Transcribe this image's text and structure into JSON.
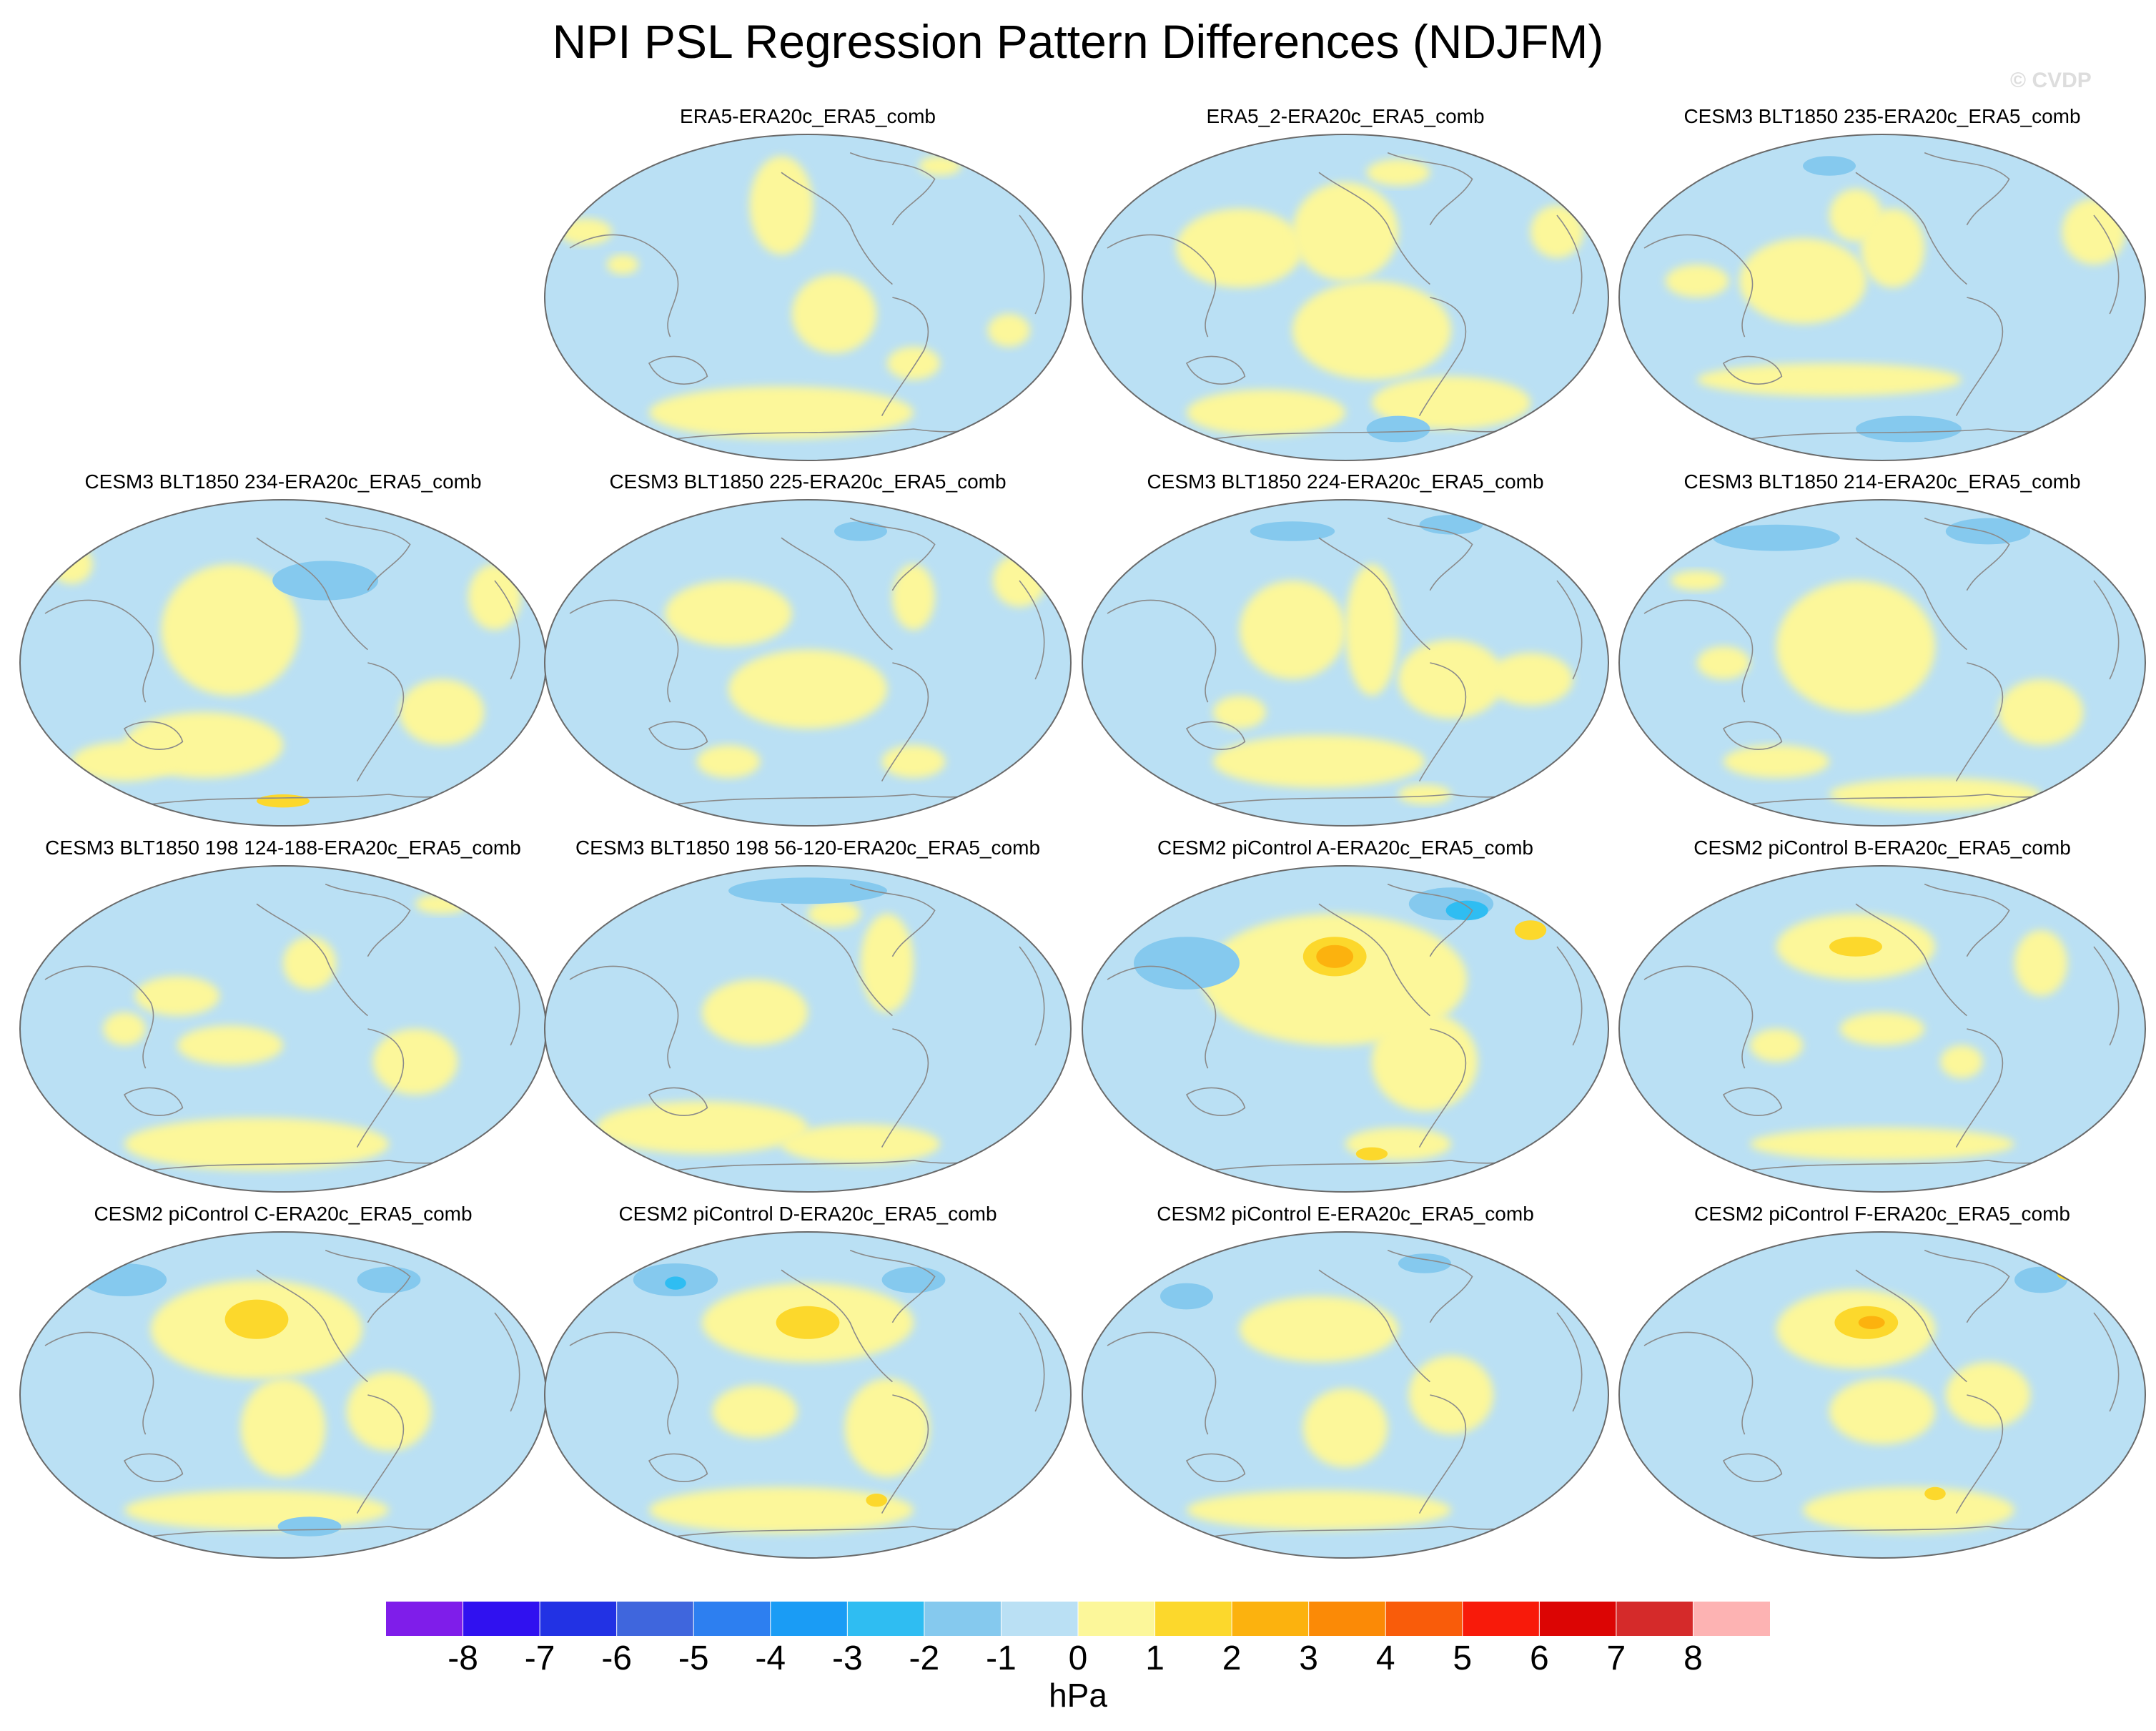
{
  "title": "NPI PSL Regression Pattern Differences (NDJFM)",
  "watermark": "© CVDP",
  "units": "hPa",
  "colorbar": {
    "labels": [
      "-8",
      "-7",
      "-6",
      "-5",
      "-4",
      "-3",
      "-2",
      "-1",
      "0",
      "1",
      "2",
      "3",
      "4",
      "5",
      "6",
      "7",
      "8"
    ],
    "colors": [
      "#7f1dea",
      "#3011f0",
      "#2232e4",
      "#3f66dd",
      "#2d7ff0",
      "#1a9cf5",
      "#2fbdf2",
      "#85c9ee",
      "#bae0f4",
      "#fcf79a",
      "#fcd82c",
      "#fcb20e",
      "#fb8a06",
      "#f95c0a",
      "#f81a0a",
      "#dc0504",
      "#d52a2a",
      "#fdb3b3"
    ]
  },
  "map_colors": {
    "ocean_base": "#bae0f4",
    "positive": "#fcf79a",
    "positive_2": "#fcd82c",
    "positive_3": "#fcb20e",
    "negative_2": "#85c9ee",
    "negative_3": "#2fbdf2",
    "coast": "#8a8a8a",
    "outline": "#6a6a6a"
  },
  "panels": [
    {
      "title": "ERA5-ERA20c_ERA5_comb",
      "pos": [
        1,
        0
      ],
      "blobs": [
        [
          0.08,
          0.3,
          0.05,
          0.04,
          1
        ],
        [
          0.45,
          0.22,
          0.06,
          0.15,
          1
        ],
        [
          0.75,
          0.1,
          0.04,
          0.03,
          1
        ],
        [
          0.55,
          0.55,
          0.08,
          0.12,
          1
        ],
        [
          0.45,
          0.85,
          0.25,
          0.08,
          1
        ],
        [
          0.7,
          0.7,
          0.05,
          0.05,
          1
        ],
        [
          0.88,
          0.6,
          0.04,
          0.05,
          1
        ],
        [
          0.15,
          0.4,
          0.03,
          0.03,
          1
        ]
      ]
    },
    {
      "title": "ERA5_2-ERA20c_ERA5_comb",
      "pos": [
        2,
        0
      ],
      "blobs": [
        [
          0.3,
          0.35,
          0.12,
          0.12,
          1
        ],
        [
          0.5,
          0.3,
          0.1,
          0.15,
          1
        ],
        [
          0.55,
          0.6,
          0.15,
          0.15,
          1
        ],
        [
          0.35,
          0.85,
          0.15,
          0.07,
          1
        ],
        [
          0.7,
          0.82,
          0.15,
          0.08,
          1
        ],
        [
          0.9,
          0.3,
          0.05,
          0.08,
          1
        ],
        [
          0.6,
          0.12,
          0.06,
          0.04,
          1
        ],
        [
          0.6,
          0.9,
          0.06,
          0.04,
          -2
        ]
      ]
    },
    {
      "title": "CESM3 BLT1850 235-ERA20c_ERA5_comb",
      "pos": [
        3,
        0
      ],
      "blobs": [
        [
          0.35,
          0.45,
          0.12,
          0.13,
          1
        ],
        [
          0.45,
          0.25,
          0.05,
          0.08,
          1
        ],
        [
          0.52,
          0.35,
          0.06,
          0.12,
          1
        ],
        [
          0.9,
          0.3,
          0.06,
          0.1,
          1
        ],
        [
          0.4,
          0.75,
          0.25,
          0.05,
          1
        ],
        [
          0.55,
          0.9,
          0.1,
          0.04,
          -2
        ],
        [
          0.4,
          0.1,
          0.05,
          0.03,
          -2
        ],
        [
          0.15,
          0.45,
          0.06,
          0.05,
          1
        ]
      ]
    },
    {
      "title": "CESM3 BLT1850 234-ERA20c_ERA5_comb",
      "pos": [
        0,
        1
      ],
      "blobs": [
        [
          0.4,
          0.4,
          0.13,
          0.2,
          1
        ],
        [
          0.35,
          0.75,
          0.15,
          0.1,
          1
        ],
        [
          0.58,
          0.25,
          0.1,
          0.06,
          -2
        ],
        [
          0.2,
          0.8,
          0.1,
          0.06,
          1
        ],
        [
          0.1,
          0.2,
          0.04,
          0.06,
          1
        ],
        [
          0.8,
          0.65,
          0.08,
          0.1,
          1
        ],
        [
          0.9,
          0.3,
          0.05,
          0.1,
          1
        ],
        [
          0.5,
          0.92,
          0.05,
          0.02,
          2
        ]
      ]
    },
    {
      "title": "CESM3 BLT1850 225-ERA20c_ERA5_comb",
      "pos": [
        1,
        1
      ],
      "blobs": [
        [
          0.5,
          0.58,
          0.15,
          0.12,
          1
        ],
        [
          0.35,
          0.35,
          0.12,
          0.1,
          1
        ],
        [
          0.7,
          0.3,
          0.04,
          0.1,
          1
        ],
        [
          0.35,
          0.8,
          0.06,
          0.05,
          1
        ],
        [
          0.7,
          0.8,
          0.06,
          0.05,
          1
        ],
        [
          0.9,
          0.25,
          0.05,
          0.08,
          1
        ],
        [
          0.6,
          0.1,
          0.05,
          0.03,
          -2
        ]
      ]
    },
    {
      "title": "CESM3 BLT1850 224-ERA20c_ERA5_comb",
      "pos": [
        2,
        1
      ],
      "blobs": [
        [
          0.4,
          0.4,
          0.1,
          0.15,
          1
        ],
        [
          0.3,
          0.65,
          0.05,
          0.05,
          1
        ],
        [
          0.55,
          0.4,
          0.05,
          0.2,
          1
        ],
        [
          0.7,
          0.55,
          0.1,
          0.12,
          1
        ],
        [
          0.45,
          0.8,
          0.2,
          0.08,
          1
        ],
        [
          0.85,
          0.55,
          0.08,
          0.08,
          1
        ],
        [
          0.4,
          0.1,
          0.08,
          0.03,
          -2
        ],
        [
          0.7,
          0.08,
          0.06,
          0.03,
          -2
        ],
        [
          0.65,
          0.9,
          0.05,
          0.03,
          1
        ]
      ]
    },
    {
      "title": "CESM3 BLT1850 214-ERA20c_ERA5_comb",
      "pos": [
        3,
        1
      ],
      "blobs": [
        [
          0.45,
          0.45,
          0.15,
          0.2,
          1
        ],
        [
          0.3,
          0.8,
          0.1,
          0.05,
          1
        ],
        [
          0.6,
          0.9,
          0.2,
          0.05,
          1
        ],
        [
          0.2,
          0.5,
          0.05,
          0.05,
          1
        ],
        [
          0.8,
          0.65,
          0.08,
          0.1,
          1
        ],
        [
          0.3,
          0.12,
          0.12,
          0.04,
          -2
        ],
        [
          0.7,
          0.1,
          0.08,
          0.04,
          -2
        ],
        [
          0.15,
          0.25,
          0.05,
          0.03,
          1
        ]
      ]
    },
    {
      "title": "CESM3 BLT1850 198 124-188-ERA20c_ERA5_comb",
      "pos": [
        0,
        2
      ],
      "blobs": [
        [
          0.3,
          0.4,
          0.08,
          0.06,
          1
        ],
        [
          0.55,
          0.3,
          0.05,
          0.08,
          1
        ],
        [
          0.4,
          0.55,
          0.1,
          0.06,
          1
        ],
        [
          0.45,
          0.85,
          0.25,
          0.08,
          1
        ],
        [
          0.75,
          0.6,
          0.08,
          0.1,
          1
        ],
        [
          0.2,
          0.5,
          0.04,
          0.05,
          1
        ],
        [
          0.8,
          0.12,
          0.05,
          0.03,
          1
        ]
      ]
    },
    {
      "title": "CESM3 BLT1850 198 56-120-ERA20c_ERA5_comb",
      "pos": [
        1,
        2
      ],
      "blobs": [
        [
          0.4,
          0.45,
          0.1,
          0.1,
          1
        ],
        [
          0.65,
          0.3,
          0.05,
          0.15,
          1
        ],
        [
          0.55,
          0.15,
          0.05,
          0.04,
          1
        ],
        [
          0.3,
          0.8,
          0.2,
          0.08,
          1
        ],
        [
          0.6,
          0.85,
          0.15,
          0.06,
          1
        ],
        [
          0.5,
          0.08,
          0.15,
          0.04,
          -2
        ]
      ]
    },
    {
      "title": "CESM2 piControl A-ERA20c_ERA5_comb",
      "pos": [
        2,
        2
      ],
      "blobs": [
        [
          0.48,
          0.35,
          0.25,
          0.2,
          1
        ],
        [
          0.48,
          0.28,
          0.06,
          0.06,
          2
        ],
        [
          0.48,
          0.28,
          0.035,
          0.035,
          3
        ],
        [
          0.65,
          0.6,
          0.1,
          0.15,
          1
        ],
        [
          0.2,
          0.3,
          0.1,
          0.08,
          -2
        ],
        [
          0.7,
          0.12,
          0.08,
          0.05,
          -2
        ],
        [
          0.73,
          0.14,
          0.04,
          0.03,
          -3
        ],
        [
          0.6,
          0.85,
          0.1,
          0.05,
          1
        ],
        [
          0.55,
          0.88,
          0.03,
          0.02,
          2
        ],
        [
          0.85,
          0.2,
          0.03,
          0.03,
          2
        ]
      ]
    },
    {
      "title": "CESM2 piControl B-ERA20c_ERA5_comb",
      "pos": [
        3,
        2
      ],
      "blobs": [
        [
          0.45,
          0.25,
          0.15,
          0.1,
          1
        ],
        [
          0.45,
          0.25,
          0.05,
          0.03,
          2
        ],
        [
          0.3,
          0.55,
          0.05,
          0.05,
          1
        ],
        [
          0.5,
          0.5,
          0.08,
          0.05,
          1
        ],
        [
          0.8,
          0.3,
          0.05,
          0.1,
          1
        ],
        [
          0.5,
          0.85,
          0.25,
          0.05,
          1
        ],
        [
          0.65,
          0.6,
          0.04,
          0.05,
          1
        ]
      ]
    },
    {
      "title": "CESM2 piControl C-ERA20c_ERA5_comb",
      "pos": [
        0,
        3
      ],
      "blobs": [
        [
          0.45,
          0.3,
          0.2,
          0.15,
          1
        ],
        [
          0.45,
          0.27,
          0.06,
          0.06,
          2
        ],
        [
          0.5,
          0.6,
          0.08,
          0.15,
          1
        ],
        [
          0.7,
          0.55,
          0.08,
          0.12,
          1
        ],
        [
          0.45,
          0.85,
          0.25,
          0.06,
          1
        ],
        [
          0.2,
          0.15,
          0.08,
          0.05,
          -2
        ],
        [
          0.7,
          0.15,
          0.06,
          0.04,
          -2
        ],
        [
          0.55,
          0.9,
          0.06,
          0.03,
          -2
        ]
      ]
    },
    {
      "title": "CESM2 piControl D-ERA20c_ERA5_comb",
      "pos": [
        1,
        3
      ],
      "blobs": [
        [
          0.5,
          0.28,
          0.2,
          0.12,
          1
        ],
        [
          0.5,
          0.28,
          0.06,
          0.05,
          2
        ],
        [
          0.65,
          0.6,
          0.08,
          0.15,
          1
        ],
        [
          0.4,
          0.55,
          0.08,
          0.08,
          1
        ],
        [
          0.45,
          0.85,
          0.25,
          0.07,
          1
        ],
        [
          0.25,
          0.15,
          0.08,
          0.05,
          -2
        ],
        [
          0.25,
          0.16,
          0.02,
          0.02,
          -3
        ],
        [
          0.7,
          0.15,
          0.06,
          0.04,
          -2
        ],
        [
          0.63,
          0.82,
          0.02,
          0.02,
          2
        ]
      ]
    },
    {
      "title": "CESM2 piControl E-ERA20c_ERA5_comb",
      "pos": [
        2,
        3
      ],
      "blobs": [
        [
          0.45,
          0.3,
          0.15,
          0.1,
          1
        ],
        [
          0.5,
          0.6,
          0.08,
          0.12,
          1
        ],
        [
          0.7,
          0.5,
          0.08,
          0.12,
          1
        ],
        [
          0.45,
          0.85,
          0.25,
          0.06,
          1
        ],
        [
          0.2,
          0.2,
          0.05,
          0.04,
          -2
        ],
        [
          0.65,
          0.1,
          0.05,
          0.03,
          -2
        ]
      ]
    },
    {
      "title": "CESM2 piControl F-ERA20c_ERA5_comb",
      "pos": [
        3,
        3
      ],
      "blobs": [
        [
          0.45,
          0.3,
          0.15,
          0.12,
          1
        ],
        [
          0.47,
          0.28,
          0.06,
          0.05,
          2
        ],
        [
          0.48,
          0.28,
          0.025,
          0.02,
          3
        ],
        [
          0.5,
          0.55,
          0.1,
          0.1,
          1
        ],
        [
          0.7,
          0.5,
          0.08,
          0.1,
          1
        ],
        [
          0.55,
          0.85,
          0.2,
          0.07,
          1
        ],
        [
          0.6,
          0.8,
          0.02,
          0.02,
          2
        ],
        [
          0.8,
          0.15,
          0.05,
          0.04,
          -2
        ],
        [
          0.85,
          0.13,
          0.02,
          0.02,
          2
        ]
      ]
    }
  ]
}
